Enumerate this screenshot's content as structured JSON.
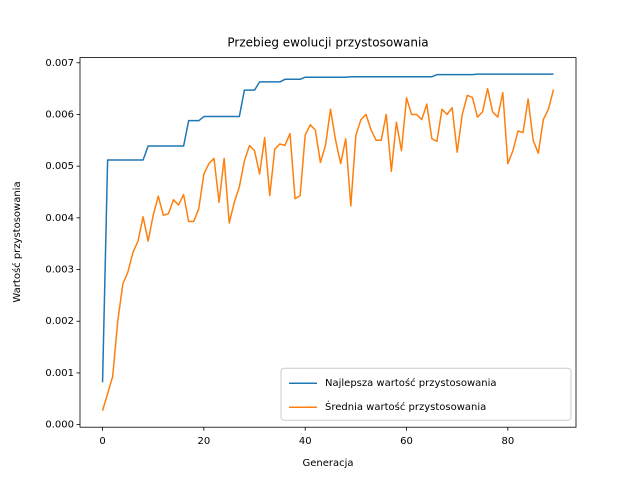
{
  "chart_data": {
    "type": "line",
    "title": "Przebieg ewolucji przystosowania",
    "xlabel": "Generacja",
    "ylabel": "Wartość przystosowania",
    "x": [
      0,
      1,
      2,
      3,
      4,
      5,
      6,
      7,
      8,
      9,
      10,
      11,
      12,
      13,
      14,
      15,
      16,
      17,
      18,
      19,
      20,
      21,
      22,
      23,
      24,
      25,
      26,
      27,
      28,
      29,
      30,
      31,
      32,
      33,
      34,
      35,
      36,
      37,
      38,
      39,
      40,
      41,
      42,
      43,
      44,
      45,
      46,
      47,
      48,
      49,
      50,
      51,
      52,
      53,
      54,
      55,
      56,
      57,
      58,
      59,
      60,
      61,
      62,
      63,
      64,
      65,
      66,
      67,
      68,
      69,
      70,
      71,
      72,
      73,
      74,
      75,
      76,
      77,
      78,
      79,
      80,
      81,
      82,
      83,
      84,
      85,
      86,
      87,
      88,
      89
    ],
    "series": [
      {
        "name": "Najlepsza wartość przystosowania",
        "color": "#1f77b4",
        "values": [
          0.00082,
          0.00512,
          0.00512,
          0.00512,
          0.00512,
          0.00512,
          0.00512,
          0.00512,
          0.00512,
          0.00539,
          0.00539,
          0.00539,
          0.00539,
          0.00539,
          0.00539,
          0.00539,
          0.00539,
          0.00588,
          0.00588,
          0.00588,
          0.00596,
          0.00596,
          0.00596,
          0.00596,
          0.00596,
          0.00596,
          0.00596,
          0.00596,
          0.00647,
          0.00647,
          0.00647,
          0.00663,
          0.00663,
          0.00663,
          0.00663,
          0.00663,
          0.00668,
          0.00668,
          0.00668,
          0.00668,
          0.00672,
          0.00672,
          0.00672,
          0.00672,
          0.00672,
          0.00672,
          0.00672,
          0.00672,
          0.00672,
          0.00673,
          0.00673,
          0.00673,
          0.00673,
          0.00673,
          0.00673,
          0.00673,
          0.00673,
          0.00673,
          0.00673,
          0.00673,
          0.00673,
          0.00673,
          0.00673,
          0.00673,
          0.00673,
          0.00673,
          0.00677,
          0.00677,
          0.00677,
          0.00677,
          0.00677,
          0.00677,
          0.00677,
          0.00677,
          0.00678,
          0.00678,
          0.00678,
          0.00678,
          0.00678,
          0.00678,
          0.00678,
          0.00678,
          0.00678,
          0.00678,
          0.00678,
          0.00678,
          0.00678,
          0.00678,
          0.00678,
          0.00678
        ]
      },
      {
        "name": "Średnia wartość przystosowania",
        "color": "#ff7f0e",
        "values": [
          0.00027,
          0.0006,
          0.00093,
          0.002,
          0.00272,
          0.00295,
          0.00333,
          0.00355,
          0.00402,
          0.00355,
          0.00405,
          0.00442,
          0.00405,
          0.00408,
          0.00435,
          0.00425,
          0.00445,
          0.00393,
          0.00393,
          0.00418,
          0.00485,
          0.00505,
          0.00515,
          0.0043,
          0.00515,
          0.0039,
          0.0043,
          0.0046,
          0.0051,
          0.0054,
          0.0053,
          0.00485,
          0.00555,
          0.00443,
          0.00533,
          0.00543,
          0.0054,
          0.00563,
          0.00437,
          0.00443,
          0.0056,
          0.0058,
          0.0057,
          0.00507,
          0.0054,
          0.0061,
          0.0055,
          0.00505,
          0.00553,
          0.00423,
          0.0056,
          0.0059,
          0.006,
          0.0057,
          0.0055,
          0.0055,
          0.006,
          0.0049,
          0.00585,
          0.0053,
          0.00632,
          0.006,
          0.006,
          0.0059,
          0.0062,
          0.00553,
          0.00548,
          0.0061,
          0.006,
          0.00613,
          0.00527,
          0.006,
          0.00637,
          0.00633,
          0.00595,
          0.00605,
          0.0065,
          0.00605,
          0.00595,
          0.00642,
          0.00505,
          0.0053,
          0.00568,
          0.00565,
          0.0063,
          0.0055,
          0.00525,
          0.0059,
          0.0061,
          0.00648
        ]
      }
    ],
    "xlim": [
      -4.45,
      93.45
    ],
    "xticks": [
      0,
      20,
      40,
      60,
      80
    ],
    "ylim": [
      -5e-05,
      0.0071
    ],
    "yticks": [
      {
        "value": 0,
        "label": "0.000"
      },
      0.001,
      0.002,
      0.003,
      0.004,
      0.005,
      0.006,
      0.007
    ],
    "grid": false,
    "legend": "lower right"
  }
}
